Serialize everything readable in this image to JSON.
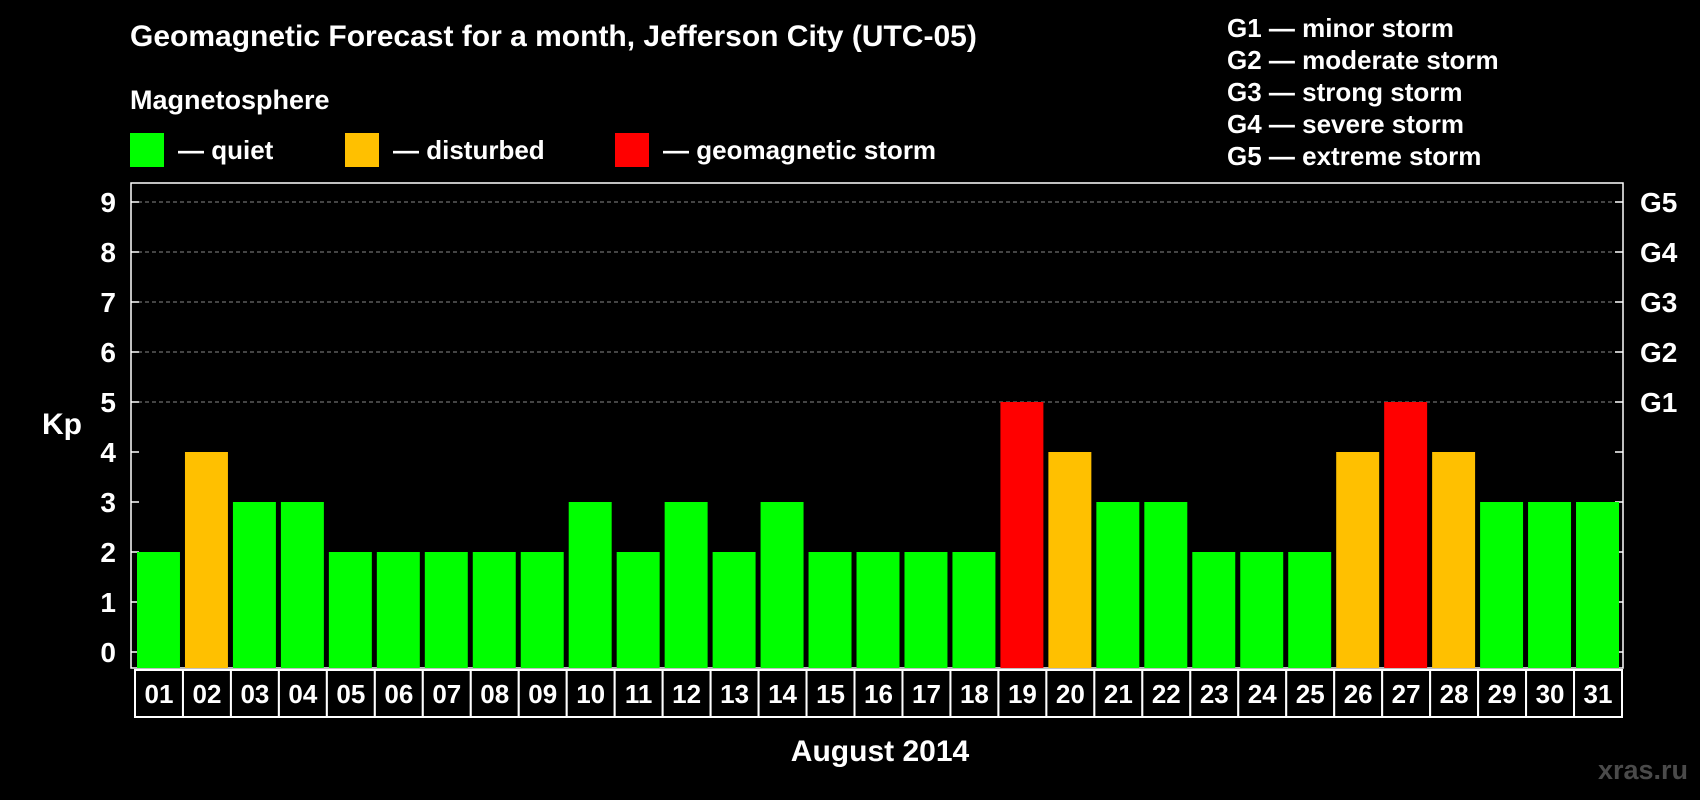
{
  "chart_data": {
    "type": "bar",
    "title": "Geomagnetic Forecast for a month, Jefferson City (UTC-05)",
    "xlabel": "August 2014",
    "ylabel": "Kp",
    "ylim": [
      0,
      9
    ],
    "yticks": [
      "0",
      "1",
      "2",
      "3",
      "4",
      "5",
      "6",
      "7",
      "8",
      "9"
    ],
    "right_ticks": [
      {
        "kp": 5,
        "label": "G1"
      },
      {
        "kp": 6,
        "label": "G2"
      },
      {
        "kp": 7,
        "label": "G3"
      },
      {
        "kp": 8,
        "label": "G4"
      },
      {
        "kp": 9,
        "label": "G5"
      }
    ],
    "grid": "dashed horizontal at Kp 5-9",
    "categories": [
      "01",
      "02",
      "03",
      "04",
      "05",
      "06",
      "07",
      "08",
      "09",
      "10",
      "11",
      "12",
      "13",
      "14",
      "15",
      "16",
      "17",
      "18",
      "19",
      "20",
      "21",
      "22",
      "23",
      "24",
      "25",
      "26",
      "27",
      "28",
      "29",
      "30",
      "31"
    ],
    "values": [
      2,
      4,
      3,
      3,
      2,
      2,
      2,
      2,
      2,
      3,
      2,
      3,
      2,
      3,
      2,
      2,
      2,
      2,
      5,
      4,
      3,
      3,
      2,
      2,
      2,
      4,
      5,
      4,
      3,
      3,
      3
    ]
  },
  "magnetosphere": {
    "title": "Magnetosphere",
    "items": [
      {
        "label": "— quiet",
        "color": "#00ff00"
      },
      {
        "label": "— disturbed",
        "color": "#ffc000"
      },
      {
        "label": "— geomagnetic storm",
        "color": "#ff0000"
      }
    ]
  },
  "storm_levels": [
    "G1 — minor storm",
    "G2 — moderate storm",
    "G3 — strong storm",
    "G4 — severe storm",
    "G5 — extreme storm"
  ],
  "watermark": "xras.ru"
}
